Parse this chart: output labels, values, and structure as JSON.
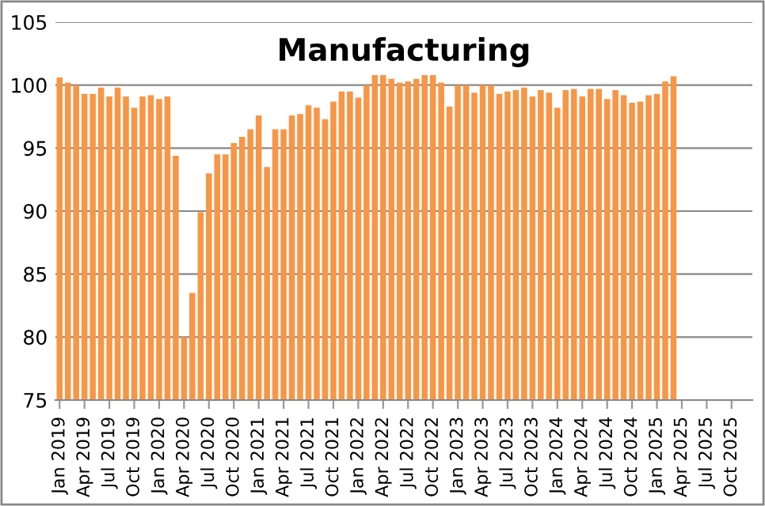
{
  "chart_data": {
    "type": "bar",
    "title": "Manufacturing",
    "categories": [
      "Jan 2019",
      null,
      null,
      "Apr 2019",
      null,
      null,
      "Jul 2019",
      null,
      null,
      "Oct 2019",
      null,
      null,
      "Jan 2020",
      null,
      null,
      "Apr 2020",
      null,
      null,
      "Jul 2020",
      null,
      null,
      "Oct 2020",
      null,
      null,
      "Jan 2021",
      null,
      null,
      "Apr 2021",
      null,
      null,
      "Jul 2021",
      null,
      null,
      "Oct 2021",
      null,
      null,
      "Jan 2022",
      null,
      null,
      "Apr 2022",
      null,
      null,
      "Jul 2022",
      null,
      null,
      "Oct 2022",
      null,
      null,
      "Jan 2023",
      null,
      null,
      "Apr 2023",
      null,
      null,
      "Jul 2023",
      null,
      null,
      "Oct 2023",
      null,
      null,
      "Jan 2024",
      null,
      null,
      "Apr 2024",
      null,
      null,
      "Jul 2024",
      null,
      null,
      "Oct 2024",
      null,
      null,
      "Jan 2025",
      null,
      null,
      "Apr 2025",
      null,
      null,
      "Jul 2025",
      null,
      null,
      "Oct 2025",
      null,
      null
    ],
    "values": [
      100.6,
      100.2,
      100.0,
      99.3,
      99.3,
      99.8,
      99.1,
      99.8,
      99.1,
      98.2,
      99.1,
      99.2,
      98.9,
      99.1,
      94.4,
      80.0,
      83.5,
      89.9,
      93.0,
      94.5,
      94.5,
      95.4,
      95.9,
      96.5,
      97.6,
      93.5,
      96.5,
      96.5,
      97.6,
      97.7,
      98.4,
      98.2,
      97.3,
      98.7,
      99.5,
      99.5,
      99.0,
      100.0,
      100.8,
      100.8,
      100.5,
      100.2,
      100.3,
      100.5,
      100.8,
      100.8,
      100.2,
      98.3,
      100.0,
      100.0,
      99.4,
      100.0,
      100.0,
      99.3,
      99.5,
      99.6,
      99.8,
      99.1,
      99.6,
      99.4,
      98.2,
      99.6,
      99.7,
      99.1,
      99.7,
      99.7,
      98.9,
      99.6,
      99.2,
      98.6,
      98.7,
      99.2,
      99.3,
      100.3,
      100.7,
      null,
      null,
      null,
      null,
      null,
      null,
      null,
      null,
      null
    ],
    "color": "#f79646",
    "ylim": [
      75,
      105
    ],
    "yticks": [
      75,
      80,
      85,
      90,
      95,
      100,
      105
    ],
    "grid": "y"
  }
}
